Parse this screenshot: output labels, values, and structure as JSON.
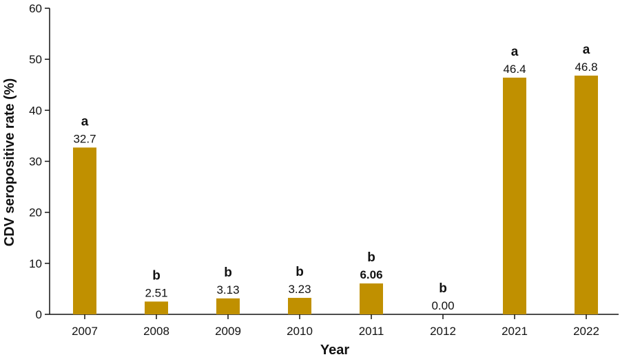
{
  "chart_data": {
    "type": "bar",
    "xlabel": "Year",
    "ylabel": "CDV seropositive rate (%)",
    "ylim": [
      0,
      60
    ],
    "yticks": [
      0,
      10,
      20,
      30,
      40,
      50,
      60
    ],
    "categories": [
      "2007",
      "2008",
      "2009",
      "2010",
      "2011",
      "2012",
      "2021",
      "2022"
    ],
    "values": [
      32.7,
      2.51,
      3.13,
      3.23,
      6.06,
      0.0,
      46.4,
      46.8
    ],
    "value_labels": [
      "32.7",
      "2.51",
      "3.13",
      "3.23",
      "6.06",
      "0.00",
      "46.4",
      "46.8"
    ],
    "bold_value_labels": [
      false,
      false,
      false,
      false,
      true,
      false,
      false,
      false
    ],
    "group_letters": [
      "a",
      "b",
      "b",
      "b",
      "b",
      "b",
      "a",
      "a"
    ],
    "bar_color": "#C09000",
    "grid": false,
    "legend": "none"
  }
}
